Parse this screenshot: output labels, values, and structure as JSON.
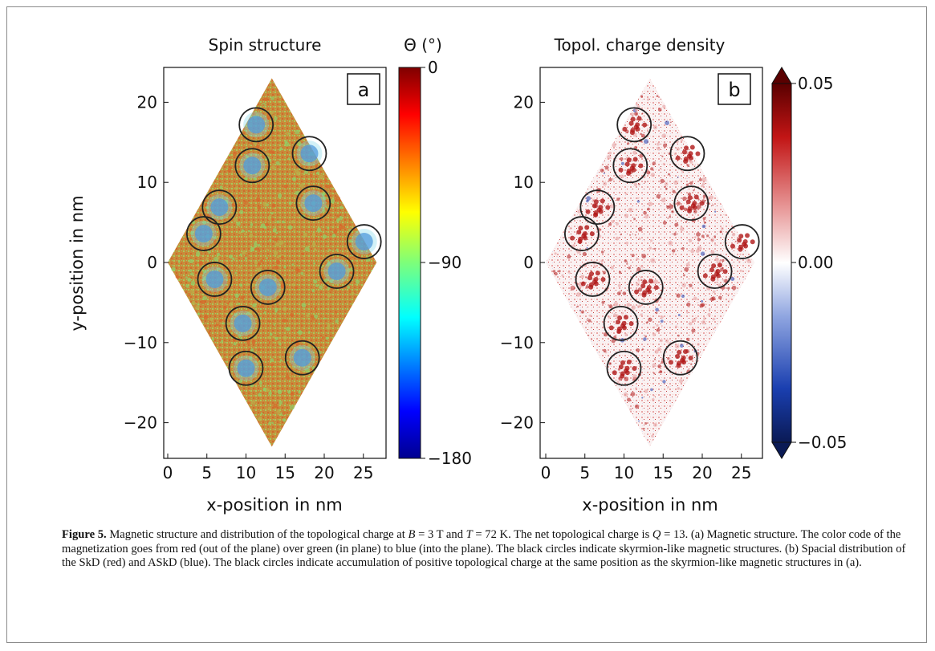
{
  "figure": {
    "panel_a": {
      "title": "Spin structure",
      "colorbar_title": "Θ (°)",
      "label": "a",
      "colorbar_ticks": [
        "0",
        "−90",
        "−180"
      ],
      "x_ticks": [
        "0",
        "5",
        "10",
        "15",
        "20",
        "25"
      ],
      "y_ticks": [
        "20",
        "10",
        "0",
        "−10",
        "−20"
      ],
      "xlabel": "x-position in nm",
      "ylabel": "y-position in nm"
    },
    "panel_b": {
      "title": "Topol. charge density",
      "label": "b",
      "colorbar_ticks": [
        "0.05",
        "0.00",
        "−0.05"
      ],
      "x_ticks": [
        "0",
        "5",
        "10",
        "15",
        "20",
        "25"
      ],
      "y_ticks": [
        "20",
        "10",
        "0",
        "−10",
        "−20"
      ],
      "xlabel": "x-position in nm"
    },
    "circle_centers_nm": [
      [
        11.3,
        17.2
      ],
      [
        18.1,
        13.6
      ],
      [
        10.8,
        12.1
      ],
      [
        18.6,
        7.4
      ],
      [
        6.6,
        6.9
      ],
      [
        4.6,
        3.6
      ],
      [
        25.1,
        2.6
      ],
      [
        6.0,
        -2.1
      ],
      [
        21.6,
        -1.1
      ],
      [
        12.8,
        -3.1
      ],
      [
        9.6,
        -7.6
      ],
      [
        17.2,
        -11.9
      ],
      [
        10.0,
        -13.2
      ]
    ],
    "colors": {
      "spin_red": "#c8782e",
      "spin_green": "#9ccf63",
      "spin_blue": "#3a7bd5",
      "charge_red": "#b01818",
      "charge_blue": "#2040b0"
    }
  },
  "caption": {
    "label": "Figure 5.",
    "text_1": " Magnetic structure and distribution of the topological charge at ",
    "b_var": "B",
    "b_val": " = 3 T and ",
    "t_var": "T",
    "t_val": " = 72 K. The net topological charge is",
    "q_var": "Q",
    "text_2": " = 13. (a) Magnetic structure. The color code of the magnetization goes from red (out of the plane) over green (in plane) to blue (into the plane). The black circles indicate skyrmion-like magnetic structures. (b) Spacial distribution of the SkD (red) and ASkD (blue). The black circles indicate accumulation of positive topological charge at the same position as the skyrmion-like magnetic structures in (a)."
  }
}
